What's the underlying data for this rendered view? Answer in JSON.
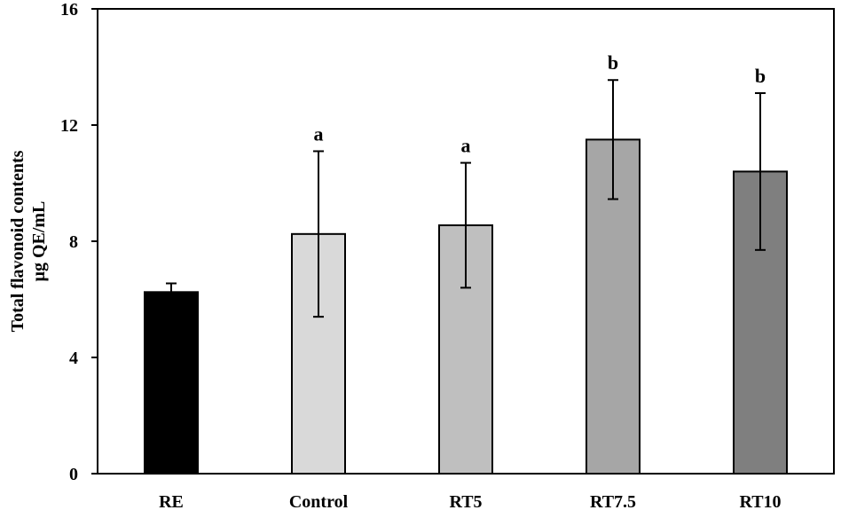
{
  "chart_data": {
    "type": "bar",
    "title": "",
    "xlabel": "",
    "ylabel_line1": "Total flavonoid contents",
    "ylabel_line2": "μg QE/mL",
    "ylim": [
      0,
      16
    ],
    "yticks": [
      0,
      4,
      8,
      12,
      16
    ],
    "ytick_labels": [
      "0",
      "4",
      "8",
      "12",
      "16"
    ],
    "grid": false,
    "categories": [
      "RE",
      "Control",
      "RT5",
      "RT7.5",
      "RT10"
    ],
    "values": [
      6.25,
      8.25,
      8.55,
      11.5,
      10.4
    ],
    "errors": [
      0.3,
      2.85,
      2.15,
      2.05,
      2.7
    ],
    "significance": [
      "",
      "a",
      "a",
      "b",
      "b"
    ],
    "bar_colors": [
      "#000000",
      "#d9d9d9",
      "#bfbfbf",
      "#a6a6a6",
      "#7f7f7f"
    ]
  }
}
